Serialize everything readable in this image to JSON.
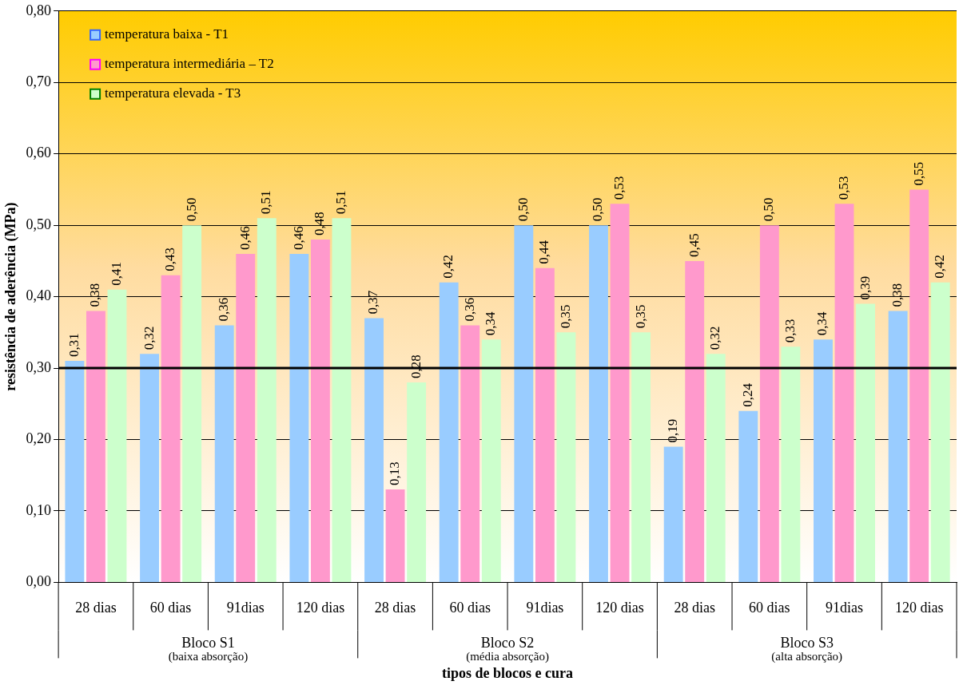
{
  "chart_data": {
    "type": "bar",
    "xlabel": "tipos de blocos e cura",
    "ylabel": "resistência de aderência (MPa)",
    "categories": [
      "28 dias",
      "60 dias",
      "91dias",
      "120 dias",
      "28 dias",
      "60 dias",
      "91dias",
      "120 dias",
      "28 dias",
      "60 dias",
      "91dias",
      "120 dias"
    ],
    "series": [
      {
        "name": "temperatura baixa - T1",
        "color": "#99ccff",
        "values": [
          0.31,
          0.32,
          0.36,
          0.46,
          0.37,
          0.42,
          0.5,
          0.5,
          0.19,
          0.24,
          0.34,
          0.38
        ],
        "value_labels": [
          "0,31",
          "0,32",
          "0,36",
          "0,46",
          "0,37",
          "0,42",
          "0,50",
          "0,50",
          "0,19",
          "0,24",
          "0,34",
          "0,38"
        ]
      },
      {
        "name": "temperatura intermediária – T2",
        "color": "#ff99cc",
        "values": [
          0.38,
          0.43,
          0.46,
          0.48,
          0.13,
          0.36,
          0.44,
          0.53,
          0.45,
          0.5,
          0.53,
          0.55
        ],
        "value_labels": [
          "0,38",
          "0,43",
          "0,46",
          "0,48",
          "0,13",
          "0,36",
          "0,44",
          "0,53",
          "0,45",
          "0,50",
          "0,53",
          "0,55"
        ]
      },
      {
        "name": "temperatura elevada - T3",
        "color": "#ccffcc",
        "values": [
          0.41,
          0.5,
          0.51,
          0.51,
          0.28,
          0.34,
          0.35,
          0.35,
          0.32,
          0.33,
          0.39,
          0.42
        ],
        "value_labels": [
          "0,41",
          "0,50",
          "0,51",
          "0,51",
          "0,28",
          "0,34",
          "0,35",
          "0,35",
          "0,32",
          "0,33",
          "0,39",
          "0,42"
        ]
      }
    ],
    "ylim": [
      0,
      0.8
    ],
    "yticks": [
      {
        "value": 0,
        "label": "0,00"
      },
      {
        "value": 0.1,
        "label": "0,10"
      },
      {
        "value": 0.2,
        "label": "0,20"
      },
      {
        "value": 0.3,
        "label": "0,30"
      },
      {
        "value": 0.4,
        "label": "0,40"
      },
      {
        "value": 0.5,
        "label": "0,50"
      },
      {
        "value": 0.6,
        "label": "0,60"
      },
      {
        "value": 0.7,
        "label": "0,70"
      },
      {
        "value": 0.8,
        "label": "0,80"
      }
    ],
    "grid": "y",
    "legend": "top left",
    "ref_lines": [
      {
        "axis": "y",
        "value": 0.3,
        "color": "#000000"
      }
    ],
    "annotations": [
      "Bloco S1\n(baixa absorção)",
      "Bloco S2\n(média absorção)",
      "Bloco S3\n(alta absorção)"
    ]
  }
}
